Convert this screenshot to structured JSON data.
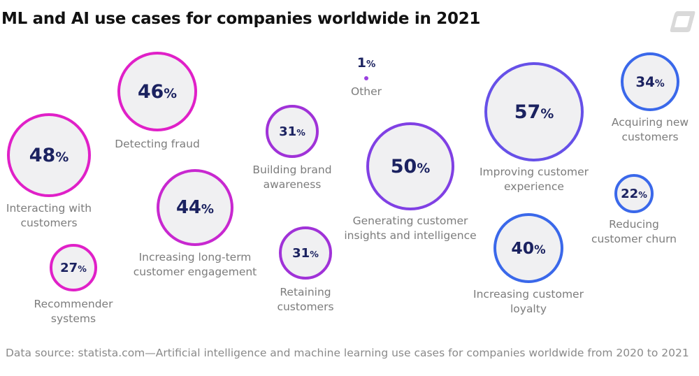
{
  "chart_data": {
    "type": "bubble",
    "title": "ML and AI use cases for companies worldwide in 2021",
    "unit": "%",
    "items": [
      {
        "label": "Interacting with customers",
        "value": 48,
        "color": "#e020c8"
      },
      {
        "label": "Detecting fraud",
        "value": 46,
        "color": "#e020c8"
      },
      {
        "label": "Recommender systems",
        "value": 27,
        "color": "#e020c8"
      },
      {
        "label": "Increasing long-term customer engagement",
        "value": 44,
        "color": "#c828d0"
      },
      {
        "label": "Building brand awareness",
        "value": 31,
        "color": "#a032d8"
      },
      {
        "label": "Retaining customers",
        "value": 31,
        "color": "#a032d8"
      },
      {
        "label": "Other",
        "value": 1,
        "color": "#9a40e0"
      },
      {
        "label": "Generating customer insights and intelligence",
        "value": 50,
        "color": "#8040e4"
      },
      {
        "label": "Improving customer experience",
        "value": 57,
        "color": "#6650e8"
      },
      {
        "label": "Acquiring new customers",
        "value": 34,
        "color": "#3a68ea"
      },
      {
        "label": "Reducing customer churn",
        "value": 22,
        "color": "#3a68ea"
      },
      {
        "label": "Increasing customer loyalty",
        "value": 40,
        "color": "#3a68ea"
      }
    ],
    "source": "Data source: statista.com—Artificial intelligence and machine learning use cases for companies worldwide from 2020 to 2021"
  }
}
